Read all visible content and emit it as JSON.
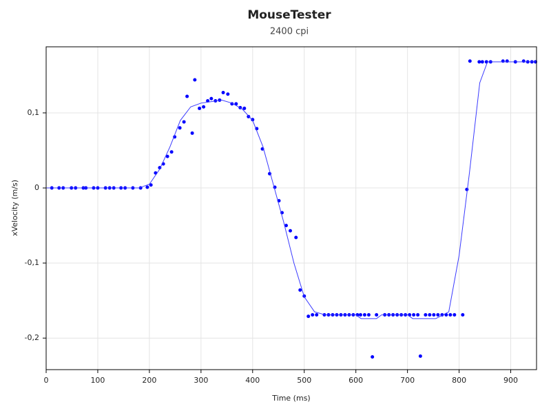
{
  "chart_data": {
    "type": "scatter",
    "title": "MouseTester",
    "subtitle": "2400 cpi",
    "x_label": "Time (ms)",
    "y_label": "xVelocity (m/s)",
    "xlim": [
      0,
      950
    ],
    "ylim": [
      -0.242,
      0.188
    ],
    "xticks": [
      0,
      100,
      200,
      300,
      400,
      500,
      600,
      700,
      800,
      900
    ],
    "yticks": [
      {
        "value": -0.2,
        "label": "-0,2"
      },
      {
        "value": -0.1,
        "label": "-0,1"
      },
      0,
      {
        "value": 0.1,
        "label": "0,1"
      }
    ],
    "grid": true,
    "series": [
      {
        "color": "#0000ff",
        "style": "markers",
        "x": [
          11,
          25,
          33,
          49,
          57,
          72,
          77,
          92,
          100,
          115,
          123,
          131,
          145,
          153,
          168,
          183,
          196,
          203,
          212,
          220,
          227,
          235,
          243,
          249,
          259,
          267,
          273,
          283,
          288,
          297,
          305,
          313,
          320,
          328,
          336,
          343,
          352,
          360,
          368,
          376,
          384,
          392,
          400,
          408,
          419,
          433,
          443,
          451,
          457,
          465,
          473,
          484,
          492,
          500,
          508,
          516,
          524,
          539,
          547,
          555,
          563,
          571,
          579,
          587,
          595,
          603,
          609,
          617,
          625,
          640,
          632,
          656,
          664,
          672,
          680,
          688,
          696,
          704,
          712,
          720,
          725,
          735,
          743,
          751,
          759,
          767,
          775,
          783,
          791,
          807,
          815,
          821,
          839,
          845,
          853,
          861,
          885,
          893,
          909,
          925,
          933,
          941,
          948
        ],
        "values": [
          0,
          0,
          0,
          0,
          0,
          0,
          0,
          0,
          0,
          0,
          0,
          0,
          0,
          0,
          0,
          0,
          0.001,
          0.004,
          0.02,
          0.027,
          0.032,
          0.042,
          0.048,
          0.068,
          0.08,
          0.088,
          0.122,
          0.073,
          0.144,
          0.106,
          0.108,
          0.116,
          0.119,
          0.116,
          0.117,
          0.127,
          0.125,
          0.112,
          0.112,
          0.107,
          0.106,
          0.095,
          0.091,
          0.079,
          0.052,
          0.019,
          0.001,
          -0.017,
          -0.033,
          -0.05,
          -0.057,
          -0.066,
          -0.136,
          -0.144,
          -0.171,
          -0.169,
          -0.169,
          -0.169,
          -0.169,
          -0.169,
          -0.169,
          -0.169,
          -0.169,
          -0.169,
          -0.169,
          -0.169,
          -0.169,
          -0.169,
          -0.169,
          -0.169,
          -0.225,
          -0.169,
          -0.169,
          -0.169,
          -0.169,
          -0.169,
          -0.169,
          -0.169,
          -0.169,
          -0.169,
          -0.224,
          -0.169,
          -0.169,
          -0.169,
          -0.169,
          -0.169,
          -0.169,
          -0.169,
          -0.169,
          -0.169,
          -0.002,
          0.169,
          0.168,
          0.168,
          0.168,
          0.168,
          0.169,
          0.169,
          0.168,
          0.169,
          0.168,
          0.168,
          0.168
        ]
      },
      {
        "color": "#3a3aff",
        "style": "line",
        "x": [
          0,
          180,
          200,
          220,
          240,
          260,
          280,
          300,
          320,
          340,
          360,
          380,
          400,
          420,
          440,
          460,
          480,
          500,
          520,
          540,
          600,
          610,
          640,
          650,
          700,
          710,
          755,
          780,
          800,
          820,
          840,
          855,
          950
        ],
        "values": [
          0,
          0,
          0.005,
          0.025,
          0.055,
          0.09,
          0.108,
          0.113,
          0.115,
          0.117,
          0.113,
          0.105,
          0.09,
          0.055,
          0.005,
          -0.045,
          -0.1,
          -0.145,
          -0.165,
          -0.169,
          -0.169,
          -0.174,
          -0.174,
          -0.169,
          -0.169,
          -0.174,
          -0.174,
          -0.165,
          -0.09,
          0.02,
          0.14,
          0.168,
          0.168
        ]
      }
    ]
  }
}
